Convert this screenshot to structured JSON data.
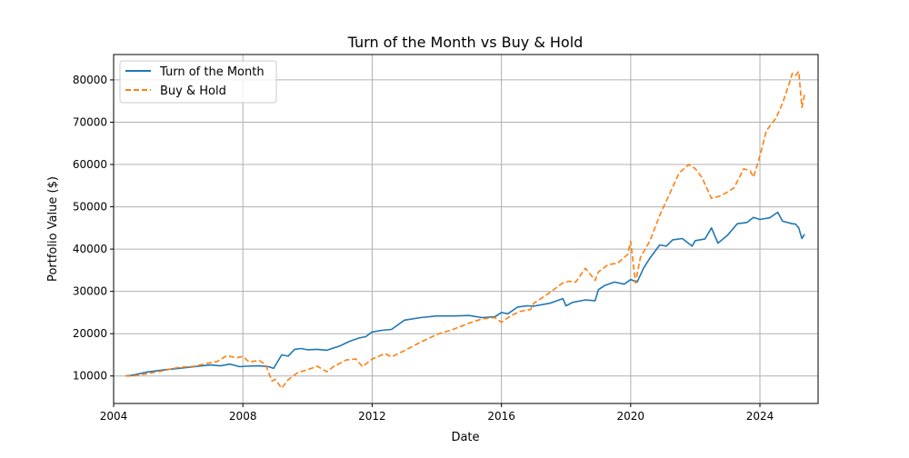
{
  "chart_data": {
    "type": "line",
    "title": "Turn of the Month vs Buy & Hold",
    "xlabel": "Date",
    "ylabel": "Portfolio Value ($)",
    "xlim": [
      2004.0,
      2025.8
    ],
    "ylim": [
      3500,
      86000
    ],
    "x_ticks": [
      2004,
      2008,
      2012,
      2016,
      2020,
      2024
    ],
    "x_tick_labels": [
      "2004",
      "2008",
      "2012",
      "2016",
      "2020",
      "2024"
    ],
    "y_ticks": [
      10000,
      20000,
      30000,
      40000,
      50000,
      60000,
      70000,
      80000
    ],
    "y_tick_labels": [
      "10000",
      "20000",
      "30000",
      "40000",
      "50000",
      "60000",
      "70000",
      "80000"
    ],
    "grid": true,
    "legend_position": "upper-left",
    "series": [
      {
        "name": "Turn of the Month",
        "color": "#1f77b4",
        "linestyle": "solid",
        "x": [
          2004.37,
          2004.6,
          2005.0,
          2005.3,
          2005.6,
          2006.0,
          2006.5,
          2007.0,
          2007.3,
          2007.6,
          2007.9,
          2008.1,
          2008.5,
          2008.8,
          2008.95,
          2009.2,
          2009.4,
          2009.6,
          2009.8,
          2010.0,
          2010.3,
          2010.6,
          2010.8,
          2011.0,
          2011.3,
          2011.6,
          2011.8,
          2012.0,
          2012.3,
          2012.6,
          2013.0,
          2013.5,
          2014.0,
          2014.5,
          2015.0,
          2015.4,
          2015.8,
          2016.0,
          2016.2,
          2016.5,
          2016.8,
          2017.0,
          2017.5,
          2017.9,
          2018.0,
          2018.2,
          2018.6,
          2018.9,
          2019.0,
          2019.2,
          2019.5,
          2019.8,
          2020.0,
          2020.2,
          2020.4,
          2020.6,
          2020.9,
          2021.1,
          2021.3,
          2021.6,
          2021.9,
          2022.0,
          2022.3,
          2022.5,
          2022.7,
          2023.0,
          2023.3,
          2023.6,
          2023.8,
          2024.0,
          2024.3,
          2024.55,
          2024.7,
          2025.0,
          2025.1,
          2025.2,
          2025.3,
          2025.38
        ],
        "y": [
          10000,
          10200,
          10900,
          11200,
          11500,
          11800,
          12200,
          12600,
          12400,
          12800,
          12200,
          12300,
          12400,
          12200,
          11800,
          15000,
          14700,
          16300,
          16500,
          16200,
          16300,
          16100,
          16600,
          17100,
          18200,
          19000,
          19300,
          20400,
          20800,
          21000,
          23200,
          23800,
          24200,
          24200,
          24300,
          23800,
          24000,
          25000,
          24700,
          26300,
          26600,
          26500,
          27200,
          28300,
          26600,
          27400,
          28000,
          27800,
          30400,
          31400,
          32200,
          31700,
          32800,
          32200,
          35500,
          37900,
          41000,
          40700,
          42200,
          42500,
          40700,
          42000,
          42400,
          45000,
          41400,
          43300,
          46000,
          46300,
          47500,
          47000,
          47400,
          48700,
          46600,
          46000,
          45900,
          45000,
          42500,
          43500
        ]
      },
      {
        "name": "Buy & Hold",
        "color": "#ff7f0e",
        "linestyle": "dashed",
        "x": [
          2004.37,
          2004.6,
          2005.0,
          2005.5,
          2006.0,
          2006.5,
          2006.9,
          2007.2,
          2007.5,
          2007.8,
          2008.0,
          2008.2,
          2008.5,
          2008.7,
          2008.9,
          2009.0,
          2009.2,
          2009.4,
          2009.7,
          2010.0,
          2010.3,
          2010.6,
          2010.8,
          2011.2,
          2011.5,
          2011.7,
          2012.0,
          2012.4,
          2012.6,
          2013.0,
          2013.5,
          2014.0,
          2014.5,
          2015.0,
          2015.4,
          2015.8,
          2016.0,
          2016.3,
          2016.6,
          2016.9,
          2017.0,
          2017.4,
          2017.9,
          2018.1,
          2018.3,
          2018.6,
          2018.9,
          2019.0,
          2019.3,
          2019.6,
          2019.9,
          2020.0,
          2020.15,
          2020.3,
          2020.6,
          2020.9,
          2021.2,
          2021.5,
          2021.8,
          2022.0,
          2022.2,
          2022.5,
          2022.75,
          2023.0,
          2023.2,
          2023.5,
          2023.7,
          2023.8,
          2024.0,
          2024.2,
          2024.5,
          2024.7,
          2024.9,
          2025.0,
          2025.1,
          2025.2,
          2025.3,
          2025.38
        ],
        "y": [
          10000,
          10000,
          10500,
          11200,
          12000,
          12300,
          13000,
          13400,
          14800,
          14300,
          14600,
          13300,
          13700,
          12700,
          8800,
          9200,
          7100,
          9100,
          10800,
          11500,
          12300,
          11000,
          12200,
          13800,
          14000,
          12200,
          14000,
          15300,
          14500,
          16000,
          18000,
          19800,
          21000,
          22500,
          23500,
          23800,
          22700,
          24300,
          25300,
          25700,
          27200,
          29200,
          32000,
          32400,
          32200,
          35500,
          32600,
          34600,
          36300,
          36700,
          38700,
          41800,
          32000,
          38000,
          42000,
          48000,
          53000,
          58000,
          60000,
          59000,
          57000,
          52000,
          52500,
          53500,
          54500,
          59000,
          58500,
          57000,
          62000,
          68000,
          71000,
          74500,
          79000,
          81500,
          81000,
          82000,
          73500,
          76500
        ]
      }
    ]
  }
}
